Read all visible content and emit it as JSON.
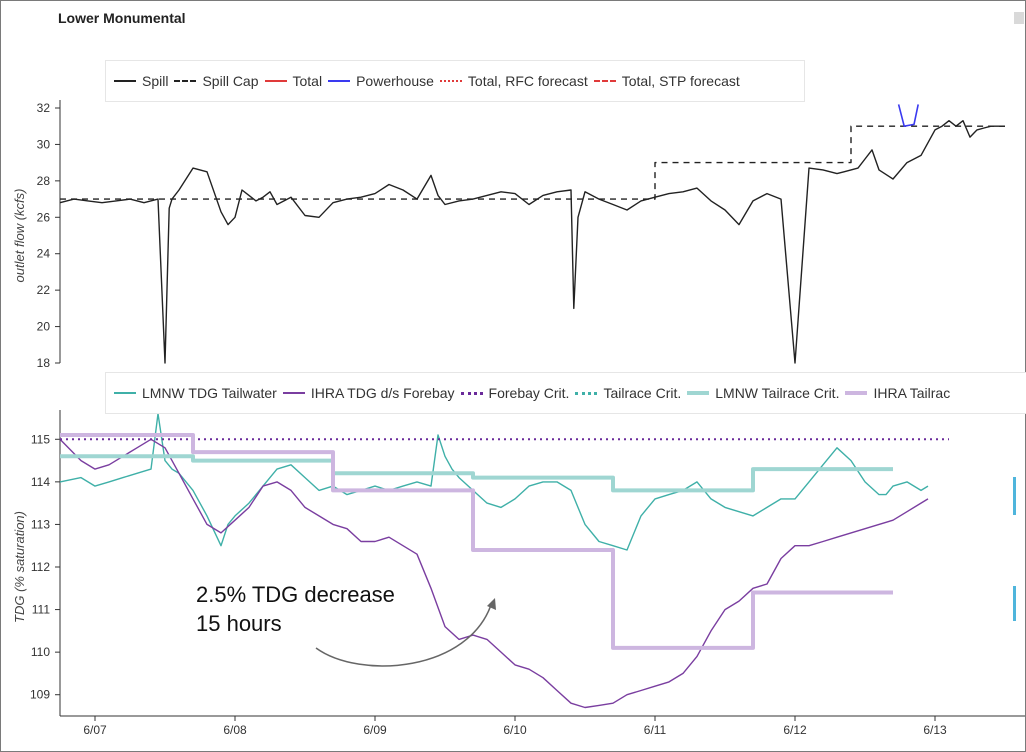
{
  "page": {
    "title": "Lower Monumental"
  },
  "annotation": {
    "line1": "2.5% TDG decrease",
    "line2": "15 hours"
  },
  "colors": {
    "spill": "#222222",
    "powerhouse": "#3a3af0",
    "total": "#e03a3a",
    "lmnw": "#3fb0a8",
    "ihra": "#7a3ea0",
    "lmnw_crit": "#9fd6d2",
    "ihra_crit": "#cdb6e0",
    "forebay_crit": "#6a2a9a"
  },
  "x_ticks": [
    "6/07",
    "6/08",
    "6/09",
    "6/10",
    "6/11",
    "6/12",
    "6/13"
  ],
  "chart_data": [
    {
      "type": "line",
      "ylabel": "outlet flow (kcfs)",
      "ylim": [
        18,
        32
      ],
      "yticks": [
        18,
        20,
        22,
        24,
        26,
        28,
        30,
        32
      ],
      "xlim": [
        -0.25,
        6.5
      ],
      "legend": [
        "Spill",
        "Spill Cap",
        "Total",
        "Powerhouse",
        "Total, RFC forecast",
        "Total, STP forecast"
      ],
      "series": [
        {
          "name": "Spill",
          "style": "solid",
          "x": [
            -0.25,
            -0.15,
            -0.05,
            0.05,
            0.15,
            0.25,
            0.35,
            0.45,
            0.5,
            0.53,
            0.55,
            0.6,
            0.7,
            0.8,
            0.9,
            0.95,
            1.0,
            1.05,
            1.1,
            1.15,
            1.2,
            1.25,
            1.3,
            1.35,
            1.4,
            1.5,
            1.6,
            1.7,
            1.8,
            1.9,
            2.0,
            2.1,
            2.2,
            2.3,
            2.4,
            2.45,
            2.5,
            2.6,
            2.7,
            2.8,
            2.9,
            3.0,
            3.1,
            3.2,
            3.3,
            3.4,
            3.42,
            3.45,
            3.5,
            3.6,
            3.7,
            3.8,
            3.9,
            4.0,
            4.1,
            4.2,
            4.3,
            4.4,
            4.5,
            4.6,
            4.7,
            4.8,
            4.9,
            5.0,
            5.1,
            5.2,
            5.3,
            5.35,
            5.4,
            5.45,
            5.5,
            5.55,
            5.6,
            5.7,
            5.8,
            5.9,
            6.0,
            6.05,
            6.1,
            6.15,
            6.2,
            6.25,
            6.3,
            6.35,
            6.4,
            6.45,
            6.5
          ],
          "y": [
            26.8,
            27.0,
            26.9,
            26.8,
            26.9,
            27.0,
            26.8,
            27.0,
            18.0,
            26.5,
            27.0,
            27.5,
            28.7,
            28.5,
            26.3,
            25.6,
            26.0,
            27.5,
            27.2,
            26.9,
            27.1,
            27.4,
            26.7,
            26.9,
            27.1,
            26.1,
            26.0,
            26.8,
            27.0,
            27.1,
            27.3,
            27.8,
            27.5,
            27.0,
            28.3,
            27.2,
            26.7,
            26.9,
            27.0,
            27.2,
            27.4,
            27.3,
            26.7,
            27.2,
            27.4,
            27.5,
            21.0,
            26.0,
            27.4,
            27.0,
            26.7,
            26.4,
            26.9,
            27.1,
            27.3,
            27.4,
            27.6,
            26.9,
            26.4,
            25.6,
            26.9,
            27.3,
            27.0,
            18.0,
            28.7,
            28.6,
            28.4,
            28.5,
            28.6,
            28.7,
            29.2,
            29.7,
            28.6,
            28.1,
            29.0,
            29.4,
            30.8,
            31.0,
            31.3,
            31.0,
            31.3,
            30.4,
            30.8,
            30.9,
            31.0,
            31.0,
            31.0
          ]
        },
        {
          "name": "Spill Cap",
          "style": "dashed",
          "x": [
            -0.25,
            4.0,
            4.0,
            5.4,
            5.4,
            6.5
          ],
          "y": [
            27.0,
            27.0,
            29.0,
            29.0,
            31.0,
            31.0
          ]
        },
        {
          "name": "Powerhouse",
          "style": "solid",
          "x": [
            5.74,
            5.78,
            5.85,
            5.88
          ],
          "y": [
            32.2,
            31.0,
            31.1,
            32.2
          ]
        }
      ]
    },
    {
      "type": "line",
      "ylabel": "TDG (% saturation)",
      "ylim": [
        108.5,
        115.5
      ],
      "yticks": [
        109,
        110,
        111,
        112,
        113,
        114,
        115
      ],
      "xlim": [
        -0.25,
        6.5
      ],
      "legend": [
        "LMNW TDG Tailwater",
        "IHRA TDG d/s Forebay",
        "Forebay Crit.",
        "Tailrace Crit.",
        "LMNW Tailrace Crit.",
        "IHRA Tailrac"
      ],
      "series": [
        {
          "name": "LMNW TDG Tailwater",
          "style": "solid",
          "x": [
            -0.25,
            -0.1,
            0.0,
            0.1,
            0.2,
            0.3,
            0.4,
            0.45,
            0.5,
            0.55,
            0.6,
            0.7,
            0.8,
            0.9,
            0.95,
            1.0,
            1.1,
            1.2,
            1.3,
            1.4,
            1.5,
            1.6,
            1.7,
            1.8,
            1.9,
            2.0,
            2.1,
            2.2,
            2.3,
            2.4,
            2.45,
            2.5,
            2.55,
            2.6,
            2.7,
            2.8,
            2.9,
            3.0,
            3.1,
            3.2,
            3.3,
            3.4,
            3.5,
            3.6,
            3.7,
            3.8,
            3.9,
            4.0,
            4.1,
            4.2,
            4.3,
            4.4,
            4.5,
            4.6,
            4.7,
            4.8,
            4.9,
            5.0,
            5.1,
            5.2,
            5.3,
            5.4,
            5.5,
            5.6,
            5.65,
            5.7,
            5.8,
            5.9,
            5.95
          ],
          "y": [
            114.0,
            114.1,
            113.9,
            114.0,
            114.1,
            114.2,
            114.3,
            115.6,
            114.5,
            114.3,
            114.2,
            113.8,
            113.2,
            112.5,
            113.0,
            113.2,
            113.5,
            113.9,
            114.3,
            114.4,
            114.1,
            113.8,
            113.9,
            113.7,
            113.8,
            113.9,
            113.8,
            113.9,
            114.0,
            113.9,
            115.1,
            114.6,
            114.3,
            114.1,
            113.8,
            113.5,
            113.4,
            113.6,
            113.9,
            114.0,
            114.0,
            113.8,
            113.0,
            112.6,
            112.5,
            112.4,
            113.2,
            113.6,
            113.7,
            113.8,
            114.0,
            113.6,
            113.4,
            113.3,
            113.2,
            113.4,
            113.6,
            113.6,
            114.0,
            114.4,
            114.8,
            114.5,
            114.0,
            113.7,
            113.7,
            113.9,
            114.0,
            113.8,
            113.9
          ]
        },
        {
          "name": "IHRA TDG d/s Forebay",
          "style": "solid",
          "x": [
            -0.25,
            -0.1,
            0.0,
            0.1,
            0.2,
            0.3,
            0.4,
            0.5,
            0.6,
            0.7,
            0.8,
            0.9,
            1.0,
            1.1,
            1.2,
            1.3,
            1.4,
            1.5,
            1.6,
            1.7,
            1.8,
            1.9,
            2.0,
            2.1,
            2.2,
            2.3,
            2.4,
            2.5,
            2.6,
            2.7,
            2.8,
            2.9,
            3.0,
            3.1,
            3.2,
            3.3,
            3.4,
            3.5,
            3.6,
            3.7,
            3.8,
            3.9,
            4.0,
            4.1,
            4.2,
            4.3,
            4.4,
            4.5,
            4.6,
            4.7,
            4.8,
            4.9,
            5.0,
            5.1,
            5.2,
            5.3,
            5.4,
            5.5,
            5.6,
            5.7,
            5.8,
            5.9,
            5.95
          ],
          "y": [
            115.0,
            114.5,
            114.3,
            114.4,
            114.6,
            114.8,
            115.0,
            114.8,
            114.2,
            113.6,
            113.0,
            112.8,
            113.1,
            113.4,
            113.9,
            114.0,
            113.8,
            113.4,
            113.2,
            113.0,
            112.9,
            112.6,
            112.6,
            112.7,
            112.5,
            112.3,
            111.5,
            110.6,
            110.3,
            110.4,
            110.3,
            110.0,
            109.7,
            109.6,
            109.4,
            109.1,
            108.8,
            108.7,
            108.75,
            108.8,
            109.0,
            109.1,
            109.2,
            109.3,
            109.5,
            109.9,
            110.5,
            111.0,
            111.2,
            111.5,
            111.6,
            112.2,
            112.5,
            112.5,
            112.6,
            112.7,
            112.8,
            112.9,
            113.0,
            113.1,
            113.3,
            113.5,
            113.6
          ]
        },
        {
          "name": "Forebay Crit.",
          "style": "dotted",
          "x": [
            -0.25,
            6.1
          ],
          "y": [
            115.0,
            115.0
          ]
        },
        {
          "name": "LMNW Tailrace Crit.",
          "style": "thick",
          "x": [
            -0.25,
            0.7,
            0.7,
            1.7,
            1.7,
            2.7,
            2.7,
            3.7,
            3.7,
            4.7,
            4.7,
            5.7,
            5.7
          ],
          "y": [
            114.6,
            114.6,
            114.5,
            114.5,
            114.2,
            114.2,
            114.1,
            114.1,
            113.8,
            113.8,
            114.3,
            114.3,
            114.3
          ]
        },
        {
          "name": "IHRA Tailrace Crit.",
          "style": "thick",
          "x": [
            -0.25,
            0.7,
            0.7,
            1.7,
            1.7,
            2.7,
            2.7,
            3.7,
            3.7,
            4.7,
            4.7,
            5.7
          ],
          "y": [
            115.1,
            115.1,
            114.7,
            114.7,
            113.8,
            113.8,
            112.4,
            112.4,
            110.1,
            110.1,
            111.4,
            111.4
          ]
        }
      ]
    }
  ]
}
